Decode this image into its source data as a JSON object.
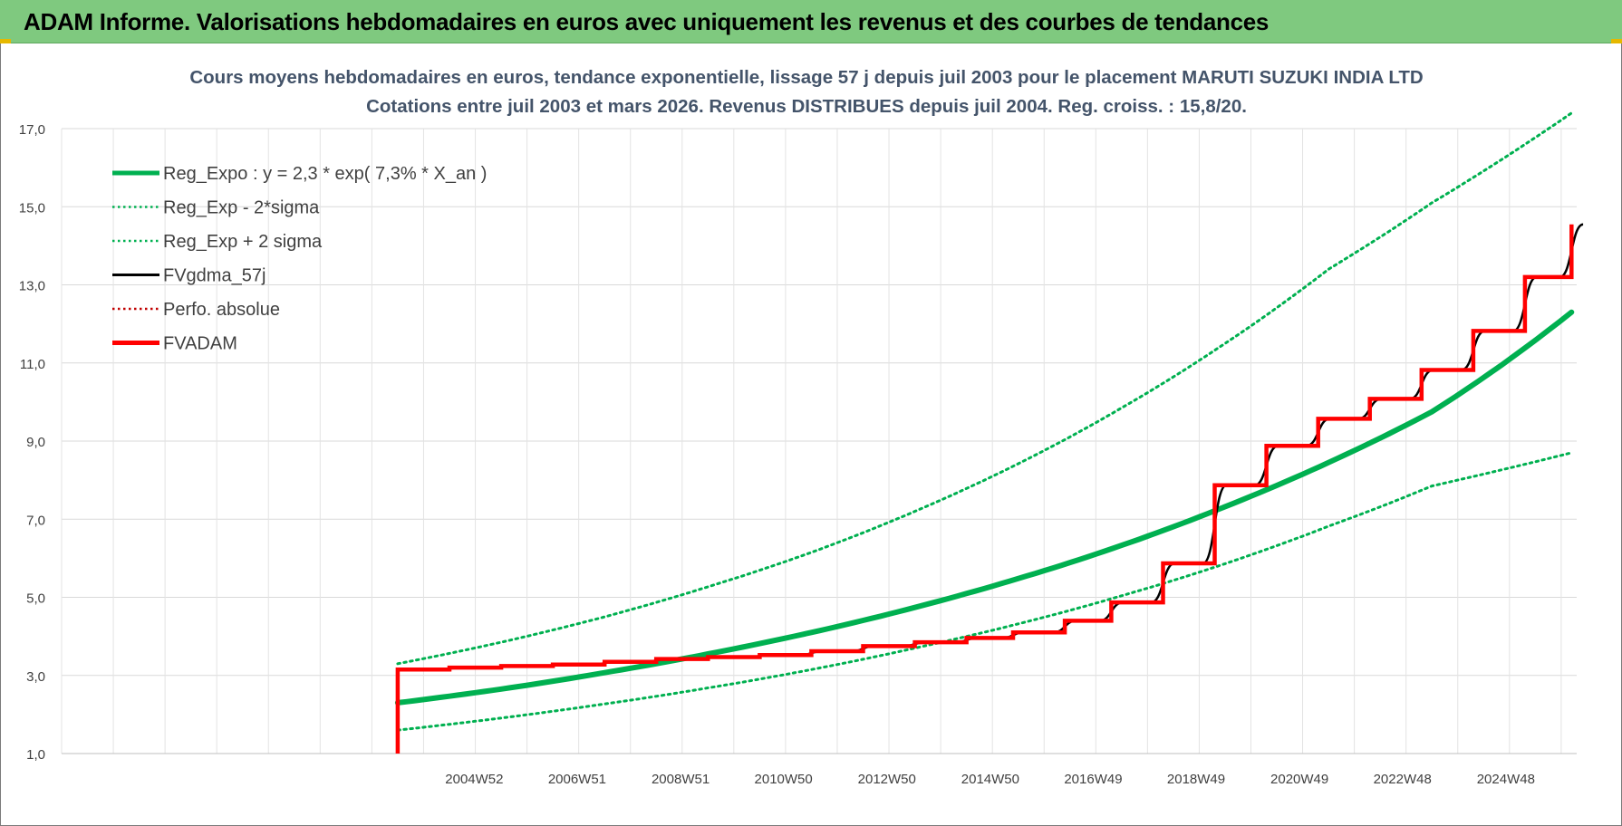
{
  "banner": {
    "title": "ADAM Informe. Valorisations hebdomadaires en euros avec uniquement les revenus et des courbes de tendances"
  },
  "colors": {
    "banner_bg": "#7fc97f",
    "reg_green": "#00b050",
    "fvadam_red": "#ff0000",
    "fvgdma_black": "#000000",
    "perfo_red": "#c00000"
  },
  "chart_data": {
    "type": "line",
    "title_line1": "Cours moyens hebdomadaires en euros, tendance exponentielle, lissage 57 j depuis juil 2003 pour le placement MARUTI SUZUKI INDIA LTD",
    "title_line2": "Cotations entre juil 2003 et mars 2026. Revenus DISTRIBUES depuis juil 2004. Reg. croiss. : 15,8/20.",
    "xlabel": "",
    "ylabel": "",
    "ylim": [
      1,
      17
    ],
    "yticks": [
      "1,0",
      "3,0",
      "5,0",
      "7,0",
      "9,0",
      "11,0",
      "13,0",
      "15,0",
      "17,0"
    ],
    "xticks": [
      "2004W52",
      "2006W51",
      "2008W51",
      "2010W50",
      "2012W50",
      "2014W50",
      "2016W49",
      "2018W49",
      "2020W49",
      "2022W48",
      "2024W48"
    ],
    "xtick_years": [
      2004.98,
      2006.97,
      2008.97,
      2010.96,
      2012.96,
      2014.96,
      2016.95,
      2018.94,
      2020.94,
      2022.93,
      2024.93
    ],
    "xlim_years": [
      1997.0,
      2026.3
    ],
    "grid": true,
    "legend_position": "top-left",
    "legend": [
      {
        "key": "reg_expo",
        "label": "Reg_Expo : y = 2,3 * exp( 7,3% *  X_an )",
        "color": "#00b050",
        "style": "solid-thick"
      },
      {
        "key": "reg_minus",
        "label": "Reg_Exp - 2*sigma",
        "color": "#00b050",
        "style": "dotted"
      },
      {
        "key": "reg_plus",
        "label": "Reg_Exp + 2 sigma",
        "color": "#00b050",
        "style": "dotted"
      },
      {
        "key": "fvgdma",
        "label": "FVgdma_57j",
        "color": "#000000",
        "style": "solid"
      },
      {
        "key": "perfo",
        "label": "Perfo. absolue",
        "color": "#c00000",
        "style": "dotted"
      },
      {
        "key": "fvadam",
        "label": "FVADAM",
        "color": "#ff0000",
        "style": "solid-thick"
      }
    ],
    "series": [
      {
        "name": "Reg_Expo : y = 2,3 * exp( 7,3% *  X_an )",
        "x": [
          2003.5,
          2005.5,
          2007.5,
          2009.5,
          2011.5,
          2013.5,
          2015.5,
          2017.5,
          2019.5,
          2021.5,
          2023.5,
          2026.2
        ],
        "values": [
          2.3,
          2.65,
          3.07,
          3.55,
          4.1,
          4.74,
          5.48,
          6.33,
          7.32,
          8.45,
          9.75,
          12.3
        ]
      },
      {
        "name": "Reg_Exp - 2*sigma",
        "x": [
          2003.5,
          2005.5,
          2007.5,
          2009.5,
          2011.5,
          2013.5,
          2015.5,
          2017.5,
          2019.5,
          2021.5,
          2023.5,
          2026.2
        ],
        "values": [
          1.6,
          1.91,
          2.27,
          2.68,
          3.15,
          3.7,
          4.32,
          5.04,
          5.86,
          6.82,
          7.85,
          8.7
        ]
      },
      {
        "name": "Reg_Exp + 2 sigma",
        "x": [
          2003.5,
          2005.5,
          2007.5,
          2009.5,
          2011.5,
          2013.5,
          2015.5,
          2017.5,
          2019.5,
          2021.5,
          2023.5,
          2026.2
        ],
        "values": [
          3.3,
          3.85,
          4.5,
          5.27,
          6.15,
          7.2,
          8.42,
          9.85,
          11.5,
          13.4,
          15.1,
          17.4
        ]
      },
      {
        "name": "FVADAM",
        "x": [
          2003.5,
          2003.52,
          2004.5,
          2005.5,
          2006.5,
          2007.5,
          2008.5,
          2009.5,
          2010.5,
          2011.5,
          2012.5,
          2013.5,
          2014.5,
          2015.4,
          2016.4,
          2017.3,
          2018.3,
          2019.3,
          2020.3,
          2021.3,
          2022.3,
          2023.3,
          2024.3,
          2025.3,
          2026.2
        ],
        "values": [
          1.0,
          3.15,
          3.2,
          3.24,
          3.28,
          3.35,
          3.42,
          3.47,
          3.52,
          3.62,
          3.75,
          3.85,
          3.96,
          4.1,
          4.4,
          4.87,
          5.87,
          7.87,
          8.88,
          9.57,
          10.08,
          10.82,
          11.82,
          13.2,
          14.55
        ]
      },
      {
        "name": "FVgdma_57j",
        "x": [
          2003.5,
          2004.5,
          2005.5,
          2006.5,
          2007.5,
          2008.5,
          2009.5,
          2010.5,
          2011.5,
          2012.5,
          2013.5,
          2014.5,
          2015.4,
          2016.4,
          2017.3,
          2018.3,
          2019.3,
          2020.3,
          2021.3,
          2022.3,
          2023.3,
          2024.3,
          2025.3,
          2026.2
        ],
        "values": [
          3.15,
          3.2,
          3.24,
          3.28,
          3.35,
          3.42,
          3.47,
          3.52,
          3.62,
          3.75,
          3.85,
          3.96,
          4.1,
          4.4,
          4.87,
          5.87,
          7.87,
          8.88,
          9.57,
          10.08,
          10.82,
          11.82,
          13.2,
          14.55
        ]
      }
    ]
  }
}
